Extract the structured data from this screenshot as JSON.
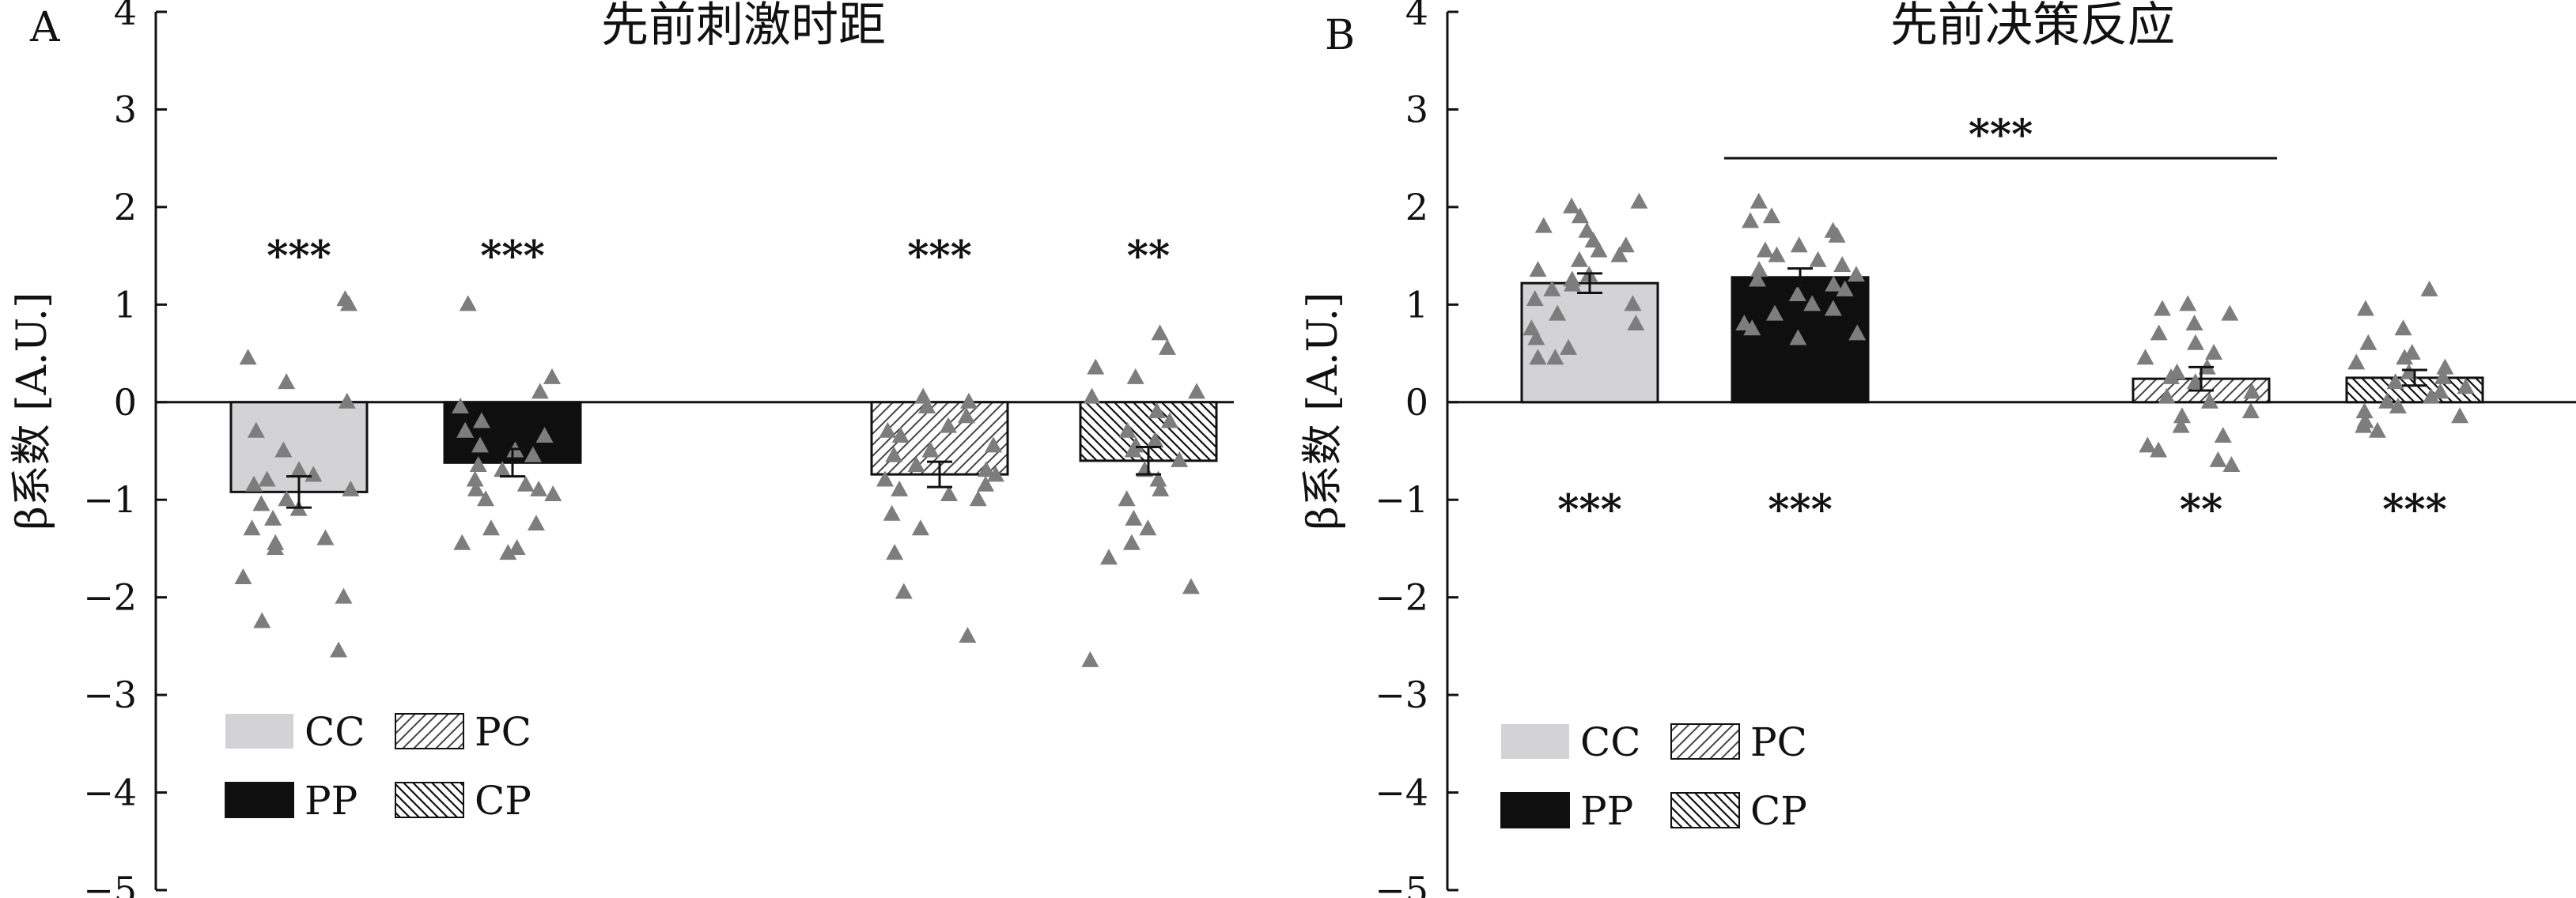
{
  "figure": {
    "colors": {
      "CC": "#d3d3d6",
      "PP": "#0f0f0f",
      "PC": "#ffffff",
      "CP": "#ffffff",
      "points": "#7d7d7d",
      "axis": "#111111"
    }
  },
  "chart_data": [
    {
      "panel_label": "A",
      "type": "bar",
      "title": "先前刺激时距",
      "ylabel": "β系数 [A.U.]",
      "xlabel": "",
      "ylim": [
        -5,
        4
      ],
      "yticks": [
        "4",
        "3",
        "2",
        "1",
        "0",
        "−1",
        "−2",
        "−3",
        "−4",
        "−5"
      ],
      "ytick_values": [
        4,
        3,
        2,
        1,
        0,
        -1,
        -2,
        -3,
        -4,
        -5
      ],
      "categories": [
        "CC",
        "PP",
        "PC",
        "CP"
      ],
      "values": [
        -0.92,
        -0.62,
        -0.74,
        -0.6
      ],
      "errors": [
        0.16,
        0.14,
        0.13,
        0.14
      ],
      "significance": [
        "***",
        "***",
        "***",
        "**"
      ],
      "legend": [
        {
          "label": "CC",
          "pattern": "solid-gray"
        },
        {
          "label": "PC",
          "pattern": "hatch-forward"
        },
        {
          "label": "PP",
          "pattern": "solid-black"
        },
        {
          "label": "CP",
          "pattern": "hatch-back"
        }
      ],
      "points": [
        [
          1.05,
          1.0,
          0.45,
          0.2,
          0.0,
          -0.3,
          -0.5,
          -0.7,
          -0.75,
          -0.8,
          -0.85,
          -0.9,
          -1.0,
          -1.05,
          -1.1,
          -1.2,
          -1.3,
          -1.4,
          -1.45,
          -1.5,
          -1.8,
          -2.0,
          -2.25,
          -2.55
        ],
        [
          1.0,
          0.25,
          0.1,
          -0.05,
          -0.2,
          -0.3,
          -0.35,
          -0.45,
          -0.5,
          -0.55,
          -0.65,
          -0.7,
          -0.8,
          -0.85,
          -0.9,
          -0.9,
          -0.95,
          -1.0,
          -1.25,
          -1.3,
          -1.45,
          -1.5,
          -1.55
        ],
        [
          0.05,
          0.0,
          -0.05,
          -0.15,
          -0.25,
          -0.3,
          -0.35,
          -0.45,
          -0.5,
          -0.55,
          -0.65,
          -0.7,
          -0.75,
          -0.8,
          -0.85,
          -0.9,
          -0.95,
          -1.0,
          -1.15,
          -1.3,
          -1.55,
          -1.95,
          -2.4
        ],
        [
          0.7,
          0.55,
          0.35,
          0.25,
          0.1,
          0.05,
          -0.1,
          -0.2,
          -0.3,
          -0.4,
          -0.45,
          -0.5,
          -0.6,
          -0.7,
          -0.8,
          -0.9,
          -1.0,
          -1.2,
          -1.3,
          -1.45,
          -1.6,
          -1.9,
          -2.65
        ]
      ]
    },
    {
      "panel_label": "B",
      "type": "bar",
      "title": "先前决策反应",
      "ylabel": "β系数 [A.U.]",
      "xlabel": "",
      "ylim": [
        -5,
        4
      ],
      "yticks": [
        "4",
        "3",
        "2",
        "1",
        "0",
        "−1",
        "−2",
        "−3",
        "−4",
        "−5"
      ],
      "ytick_values": [
        4,
        3,
        2,
        1,
        0,
        -1,
        -2,
        -3,
        -4,
        -5
      ],
      "categories": [
        "CC",
        "PP",
        "PC",
        "CP"
      ],
      "values": [
        1.22,
        1.28,
        0.24,
        0.25
      ],
      "errors": [
        0.1,
        0.09,
        0.12,
        0.08
      ],
      "significance": [
        "***",
        "***",
        "**",
        "***"
      ],
      "comparison": {
        "label": "***",
        "from": "PP",
        "to": "PC"
      },
      "legend": [
        {
          "label": "CC",
          "pattern": "solid-gray"
        },
        {
          "label": "PC",
          "pattern": "hatch-forward"
        },
        {
          "label": "PP",
          "pattern": "solid-black"
        },
        {
          "label": "CP",
          "pattern": "hatch-back"
        }
      ],
      "points": [
        [
          2.05,
          2.0,
          1.9,
          1.8,
          1.75,
          1.65,
          1.6,
          1.55,
          1.5,
          1.45,
          1.35,
          1.3,
          1.25,
          1.2,
          1.15,
          1.05,
          1.0,
          0.9,
          0.8,
          0.75,
          0.65,
          0.55,
          0.45,
          0.45
        ],
        [
          2.05,
          1.9,
          1.85,
          1.75,
          1.7,
          1.6,
          1.55,
          1.5,
          1.45,
          1.4,
          1.35,
          1.3,
          1.25,
          1.2,
          1.15,
          1.1,
          1.0,
          0.95,
          0.9,
          0.8,
          0.75,
          0.7,
          0.65
        ],
        [
          1.0,
          0.95,
          0.9,
          0.8,
          0.7,
          0.6,
          0.5,
          0.45,
          0.35,
          0.3,
          0.25,
          0.2,
          0.1,
          0.05,
          0.0,
          -0.1,
          -0.15,
          -0.25,
          -0.35,
          -0.45,
          -0.5,
          -0.6,
          -0.65
        ],
        [
          1.15,
          0.95,
          0.75,
          0.6,
          0.5,
          0.45,
          0.4,
          0.35,
          0.3,
          0.25,
          0.2,
          0.15,
          0.1,
          0.05,
          0.0,
          -0.05,
          -0.1,
          -0.15,
          -0.2,
          -0.25,
          -0.3
        ]
      ]
    }
  ]
}
